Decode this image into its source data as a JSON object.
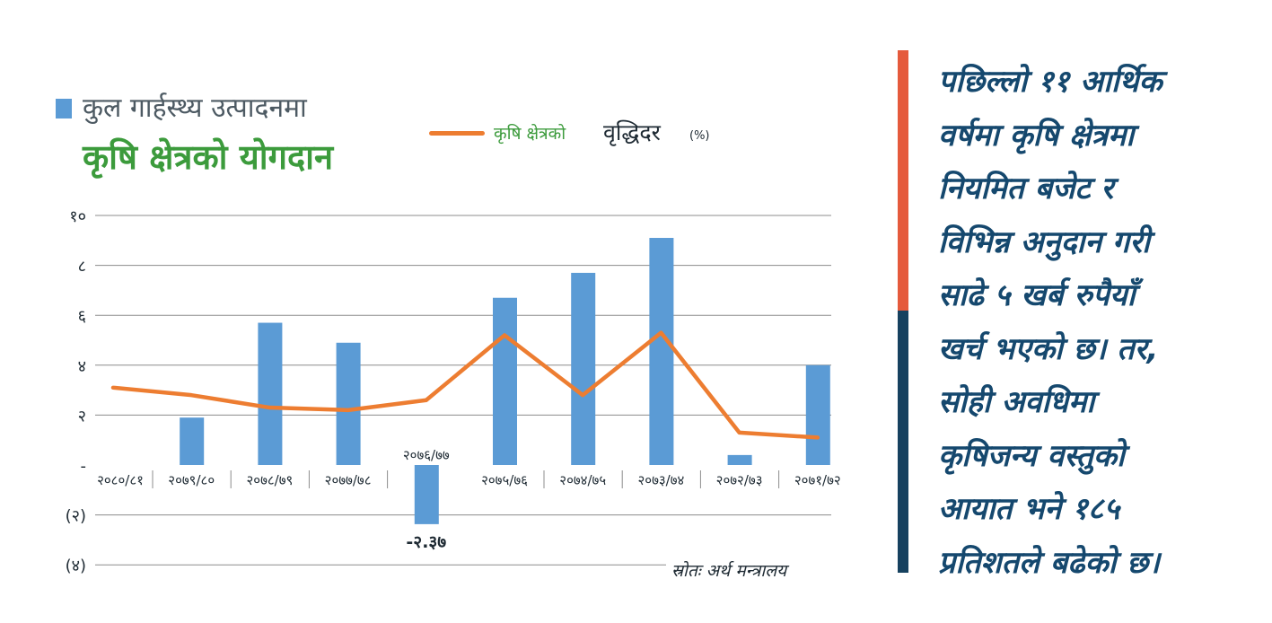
{
  "title": {
    "line1": "कुल गार्हस्थ्य उत्पादनमा",
    "line2": "कृषि क्षेत्रको योगदान"
  },
  "legend": {
    "line_label": "कृषि क्षेत्रको",
    "line_label2": "वृद्धिदर",
    "line_unit": "(%)"
  },
  "source": "स्रोतः अर्थ मन्त्रालय",
  "quote_lines": [
    "पछिल्लो ११ आर्थिक",
    "वर्षमा कृषि क्षेत्रमा",
    "नियमित बजेट र",
    "विभिन्न अनुदान गरी",
    "साढे ५ खर्ब रुपैयाँ",
    "खर्च भएको छ। तर,",
    "सोही अवधिमा",
    "कृषिजन्य वस्तुको",
    "आयात भने १८५",
    "प्रतिशतले बढेको छ।"
  ],
  "colors": {
    "bar": "#5b9bd5",
    "line": "#ed7d31",
    "title_green": "#3c9b3c",
    "legend_green": "#3c9b3c",
    "quote_text": "#15486e",
    "divider_top": "#e55a3c",
    "divider_bottom": "#16415f",
    "grid": "#8c8c8c",
    "text_dark": "#1e2a33"
  },
  "chart_data": {
    "type": "bar",
    "categories": [
      "२०८०/८१",
      "२०७९/८०",
      "२०७८/७९",
      "२०७७/७८",
      "२०७६/७७",
      "२०७५/७६",
      "२०७४/७५",
      "२०७३/७४",
      "२०७२/७३",
      "२०७१/७२"
    ],
    "series": [
      {
        "type": "bar",
        "values": [
          null,
          1.9,
          5.7,
          4.9,
          -2.37,
          6.7,
          7.7,
          9.1,
          0.4,
          4.0
        ]
      },
      {
        "type": "line",
        "values": [
          3.1,
          2.8,
          2.3,
          2.2,
          2.6,
          5.2,
          2.8,
          5.3,
          1.3,
          1.1
        ]
      }
    ],
    "y_ticks": [
      {
        "value": 10,
        "label": "१०"
      },
      {
        "value": 8,
        "label": "८"
      },
      {
        "value": 6,
        "label": "६"
      },
      {
        "value": 4,
        "label": "४"
      },
      {
        "value": 2,
        "label": "२"
      },
      {
        "value": 0,
        "label": "-"
      },
      {
        "value": -2,
        "label": "(२)"
      },
      {
        "value": -4,
        "label": "(४)"
      }
    ],
    "ylim": [
      -4,
      10
    ],
    "data_labels": [
      {
        "index": 4,
        "text": "-२.३७"
      },
      {
        "index": 4,
        "text": "२०७६/७७"
      }
    ],
    "grid": true
  }
}
